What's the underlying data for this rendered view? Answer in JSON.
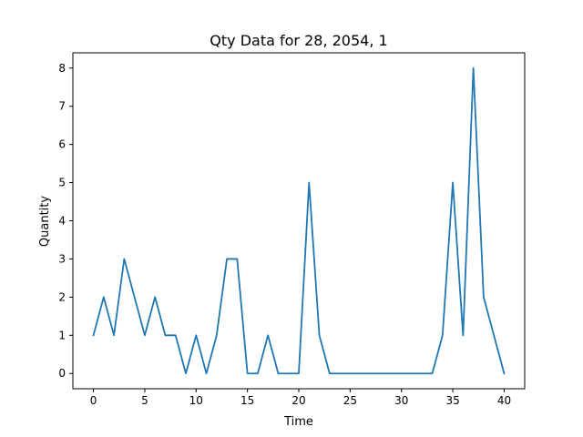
{
  "chart_data": {
    "type": "line",
    "title": "Qty Data for 28, 2054, 1",
    "xlabel": "Time",
    "ylabel": "Quantity",
    "xlim": [
      -2,
      42
    ],
    "ylim": [
      -0.4,
      8.4
    ],
    "xticks": [
      0,
      5,
      10,
      15,
      20,
      25,
      30,
      35,
      40
    ],
    "yticks": [
      0,
      1,
      2,
      3,
      4,
      5,
      6,
      7,
      8
    ],
    "grid": false,
    "series": [
      {
        "color": "#1f77b4",
        "x": [
          0,
          1,
          2,
          3,
          4,
          5,
          6,
          7,
          8,
          9,
          10,
          11,
          12,
          13,
          14,
          15,
          16,
          17,
          18,
          19,
          20,
          21,
          22,
          23,
          24,
          25,
          26,
          27,
          28,
          29,
          30,
          31,
          32,
          33,
          34,
          35,
          36,
          37,
          38,
          39,
          40
        ],
        "y": [
          1,
          2,
          1,
          3,
          2,
          1,
          2,
          1,
          1,
          0,
          1,
          0,
          1,
          3,
          3,
          0,
          0,
          1,
          0,
          0,
          0,
          5,
          1,
          0,
          0,
          0,
          0,
          0,
          0,
          0,
          0,
          0,
          0,
          0,
          1,
          5,
          1,
          8,
          2,
          1,
          0
        ]
      }
    ]
  }
}
